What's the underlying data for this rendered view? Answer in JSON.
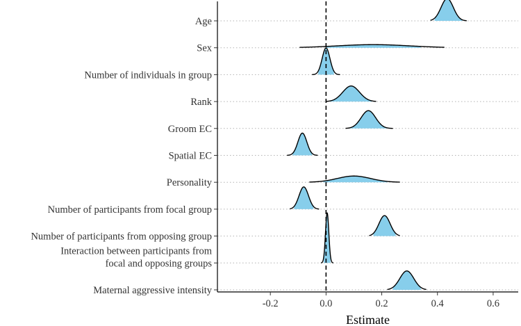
{
  "chart_data": {
    "type": "ridgeline",
    "xlabel": "Estimate",
    "ylabel": "",
    "xlim": [
      -0.39,
      0.69
    ],
    "x_ticks": [
      -0.2,
      0.0,
      0.2,
      0.4,
      0.6
    ],
    "x_tick_labels": [
      "-0.2",
      "0.0",
      "0.2",
      "0.4",
      "0.6"
    ],
    "reference_line": 0.0,
    "grid": "horizontal dotted baselines per row",
    "colors": {
      "fill": "#87ceeb",
      "outline": "#000000",
      "grid": "#b3b3b3"
    },
    "series": [
      {
        "name": "Age",
        "label_lines": [
          "Age"
        ],
        "mean": 0.435,
        "sd": 0.022,
        "range": [
          0.375,
          0.505
        ],
        "peak_height": 1.0,
        "interval": [
          0.39,
          0.49
        ]
      },
      {
        "name": "Sex",
        "label_lines": [
          "Sex"
        ],
        "mean": 0.17,
        "sd": 0.13,
        "range": [
          -0.095,
          0.425
        ],
        "peak_height": 0.14,
        "interval": [
          0.0,
          0.34
        ]
      },
      {
        "name": "Number of individuals in group",
        "label_lines": [
          "Number of individuals in group"
        ],
        "mean": 0.0,
        "sd": 0.014,
        "range": [
          -0.05,
          0.05
        ],
        "peak_height": 1.2,
        "interval": [
          -0.028,
          0.028
        ]
      },
      {
        "name": "Rank",
        "label_lines": [
          "Rank"
        ],
        "mean": 0.09,
        "sd": 0.03,
        "range": [
          0.0,
          0.18
        ],
        "peak_height": 0.7,
        "interval": [
          0.015,
          0.165
        ]
      },
      {
        "name": "Groom EC",
        "label_lines": [
          "Groom EC"
        ],
        "mean": 0.152,
        "sd": 0.026,
        "range": [
          0.07,
          0.24
        ],
        "peak_height": 0.8,
        "interval": [
          0.085,
          0.22
        ]
      },
      {
        "name": "Spatial EC",
        "label_lines": [
          "Spatial EC"
        ],
        "mean": -0.085,
        "sd": 0.016,
        "range": [
          -0.14,
          -0.03
        ],
        "peak_height": 1.0,
        "interval": [
          -0.12,
          -0.05
        ]
      },
      {
        "name": "Personality",
        "label_lines": [
          "Personality"
        ],
        "mean": 0.1,
        "sd": 0.06,
        "range": [
          -0.06,
          0.265
        ],
        "peak_height": 0.28,
        "interval": [
          -0.01,
          0.22
        ]
      },
      {
        "name": "Number of participants from focal group",
        "label_lines": [
          "Number of participants from focal group"
        ],
        "mean": -0.08,
        "sd": 0.017,
        "range": [
          -0.13,
          -0.025
        ],
        "peak_height": 1.0,
        "interval": [
          -0.115,
          -0.045
        ]
      },
      {
        "name": "Number of participants from opposing group",
        "label_lines": [
          "Number of participants from opposing group"
        ],
        "mean": 0.21,
        "sd": 0.02,
        "range": [
          0.155,
          0.265
        ],
        "peak_height": 0.92,
        "interval": [
          0.17,
          0.25
        ]
      },
      {
        "name": "Interaction between participants from focal and opposing groups",
        "label_lines": [
          "Interaction between participants from",
          "focal and opposing groups"
        ],
        "mean": 0.004,
        "sd": 0.006,
        "range": [
          -0.018,
          0.026
        ],
        "peak_height": 2.25,
        "interval": [
          -0.008,
          0.016
        ]
      },
      {
        "name": "Maternal aggressive intensity",
        "label_lines": [
          "Maternal aggressive intensity"
        ],
        "mean": 0.29,
        "sd": 0.025,
        "range": [
          0.22,
          0.36
        ],
        "peak_height": 0.85,
        "interval": [
          0.24,
          0.34
        ]
      }
    ]
  }
}
